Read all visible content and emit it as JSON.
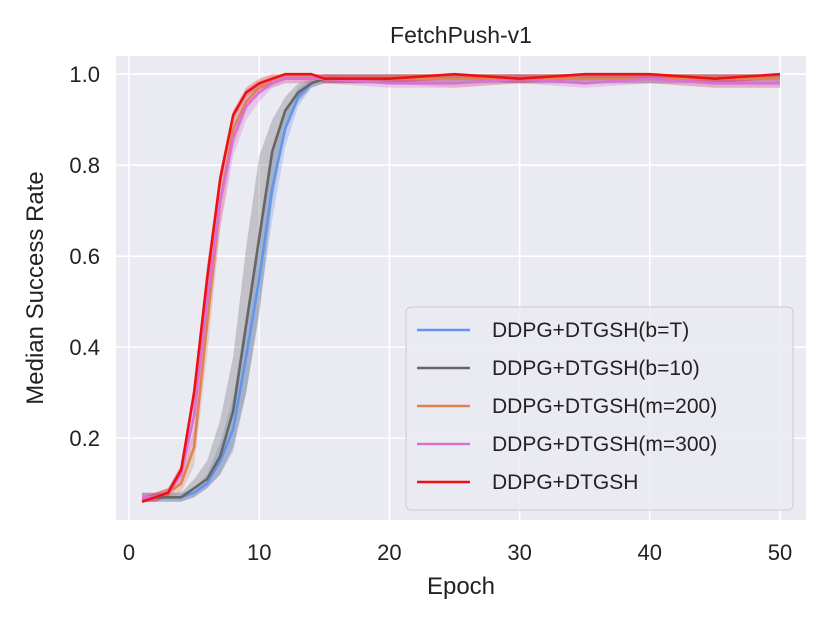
{
  "chart_data": {
    "type": "line",
    "title": "FetchPush-v1",
    "xlabel": "Epoch",
    "ylabel": "Median Success Rate",
    "xlim": [
      -1,
      52
    ],
    "ylim": [
      0.02,
      1.04
    ],
    "xticks": [
      0,
      10,
      20,
      30,
      40,
      50
    ],
    "xtick_labels": [
      "0",
      "10",
      "20",
      "30",
      "40",
      "50"
    ],
    "yticks": [
      0.2,
      0.4,
      0.6,
      0.8,
      1.0
    ],
    "ytick_labels": [
      "0.2",
      "0.4",
      "0.6",
      "0.8",
      "1.0"
    ],
    "grid": true,
    "background": "#eaeaf2",
    "legend_position": "lower-right",
    "series": [
      {
        "name": "DDPG+DTGSH(b=T)",
        "color": "#6495ed",
        "x": [
          1,
          2,
          3,
          4,
          5,
          6,
          7,
          8,
          9,
          10,
          11,
          12,
          13,
          14,
          15,
          20,
          25,
          30,
          35,
          40,
          45,
          50
        ],
        "y": [
          0.07,
          0.07,
          0.07,
          0.07,
          0.08,
          0.1,
          0.15,
          0.22,
          0.38,
          0.55,
          0.75,
          0.88,
          0.95,
          0.98,
          0.99,
          0.99,
          0.99,
          0.99,
          0.99,
          0.99,
          0.99,
          0.99
        ],
        "lower": [
          0.06,
          0.06,
          0.06,
          0.06,
          0.07,
          0.09,
          0.12,
          0.17,
          0.3,
          0.48,
          0.68,
          0.84,
          0.93,
          0.97,
          0.98,
          0.98,
          0.98,
          0.98,
          0.98,
          0.98,
          0.98,
          0.98
        ],
        "upper": [
          0.08,
          0.08,
          0.08,
          0.08,
          0.09,
          0.12,
          0.19,
          0.29,
          0.47,
          0.64,
          0.82,
          0.92,
          0.97,
          0.99,
          1.0,
          1.0,
          1.0,
          1.0,
          1.0,
          1.0,
          1.0,
          1.0
        ]
      },
      {
        "name": "DDPG+DTGSH(b=10)",
        "color": "#666666",
        "x": [
          1,
          2,
          3,
          4,
          5,
          6,
          7,
          8,
          9,
          10,
          11,
          12,
          13,
          14,
          15,
          20,
          25,
          30,
          35,
          40,
          45,
          50
        ],
        "y": [
          0.07,
          0.07,
          0.07,
          0.07,
          0.09,
          0.11,
          0.16,
          0.26,
          0.45,
          0.64,
          0.83,
          0.92,
          0.96,
          0.98,
          0.99,
          0.99,
          0.99,
          0.99,
          0.99,
          0.99,
          0.99,
          0.99
        ],
        "lower": [
          0.06,
          0.06,
          0.06,
          0.06,
          0.07,
          0.09,
          0.12,
          0.18,
          0.3,
          0.47,
          0.72,
          0.88,
          0.94,
          0.97,
          0.98,
          0.98,
          0.98,
          0.98,
          0.98,
          0.98,
          0.98,
          0.98
        ],
        "upper": [
          0.08,
          0.08,
          0.08,
          0.08,
          0.11,
          0.15,
          0.24,
          0.38,
          0.62,
          0.82,
          0.9,
          0.95,
          0.98,
          0.99,
          1.0,
          1.0,
          1.0,
          1.0,
          1.0,
          1.0,
          1.0,
          1.0
        ]
      },
      {
        "name": "DDPG+DTGSH(m=200)",
        "color": "#dd8452",
        "x": [
          1,
          2,
          3,
          4,
          5,
          6,
          7,
          8,
          9,
          10,
          11,
          12,
          13,
          14,
          15,
          20,
          25,
          30,
          35,
          40,
          45,
          50
        ],
        "y": [
          0.07,
          0.07,
          0.08,
          0.1,
          0.18,
          0.45,
          0.72,
          0.88,
          0.94,
          0.97,
          0.98,
          0.99,
          0.99,
          0.99,
          0.99,
          0.99,
          0.99,
          0.99,
          0.99,
          0.99,
          0.99,
          0.99
        ],
        "lower": [
          0.06,
          0.06,
          0.07,
          0.08,
          0.14,
          0.38,
          0.66,
          0.84,
          0.92,
          0.96,
          0.97,
          0.98,
          0.98,
          0.98,
          0.98,
          0.98,
          0.97,
          0.98,
          0.98,
          0.98,
          0.97,
          0.97
        ],
        "upper": [
          0.08,
          0.08,
          0.09,
          0.12,
          0.22,
          0.52,
          0.78,
          0.92,
          0.96,
          0.98,
          0.99,
          1.0,
          1.0,
          1.0,
          1.0,
          1.0,
          1.0,
          1.0,
          1.0,
          1.0,
          1.0,
          1.0
        ]
      },
      {
        "name": "DDPG+DTGSH(m=300)",
        "color": "#da70d6",
        "x": [
          1,
          2,
          3,
          4,
          5,
          6,
          7,
          8,
          9,
          10,
          11,
          12,
          13,
          14,
          15,
          20,
          25,
          30,
          35,
          40,
          45,
          50
        ],
        "y": [
          0.07,
          0.07,
          0.08,
          0.12,
          0.25,
          0.5,
          0.72,
          0.86,
          0.93,
          0.96,
          0.98,
          0.99,
          0.99,
          0.99,
          0.99,
          0.98,
          0.98,
          0.99,
          0.98,
          0.99,
          0.98,
          0.98
        ],
        "lower": [
          0.06,
          0.06,
          0.07,
          0.1,
          0.2,
          0.43,
          0.66,
          0.82,
          0.9,
          0.94,
          0.97,
          0.98,
          0.98,
          0.98,
          0.98,
          0.97,
          0.97,
          0.98,
          0.97,
          0.98,
          0.97,
          0.97
        ],
        "upper": [
          0.08,
          0.08,
          0.09,
          0.14,
          0.3,
          0.57,
          0.78,
          0.9,
          0.95,
          0.98,
          0.99,
          1.0,
          1.0,
          1.0,
          1.0,
          0.99,
          0.99,
          1.0,
          0.99,
          1.0,
          0.99,
          0.99
        ]
      },
      {
        "name": "DDPG+DTGSH",
        "color": "#ee1111",
        "x": [
          1,
          2,
          3,
          4,
          5,
          6,
          7,
          8,
          9,
          10,
          11,
          12,
          13,
          14,
          15,
          20,
          25,
          30,
          35,
          40,
          45,
          50
        ],
        "y": [
          0.06,
          0.07,
          0.08,
          0.13,
          0.3,
          0.55,
          0.77,
          0.91,
          0.96,
          0.98,
          0.99,
          1.0,
          1.0,
          1.0,
          0.99,
          0.99,
          1.0,
          0.99,
          1.0,
          1.0,
          0.99,
          1.0
        ],
        "lower": [
          0.06,
          0.06,
          0.07,
          0.12,
          0.28,
          0.52,
          0.75,
          0.9,
          0.95,
          0.97,
          0.98,
          0.99,
          0.99,
          0.99,
          0.98,
          0.98,
          0.99,
          0.98,
          0.99,
          0.99,
          0.98,
          0.99
        ],
        "upper": [
          0.07,
          0.08,
          0.09,
          0.14,
          0.32,
          0.58,
          0.79,
          0.92,
          0.97,
          0.99,
          1.0,
          1.0,
          1.0,
          1.0,
          1.0,
          1.0,
          1.0,
          1.0,
          1.0,
          1.0,
          1.0,
          1.0
        ]
      }
    ]
  }
}
